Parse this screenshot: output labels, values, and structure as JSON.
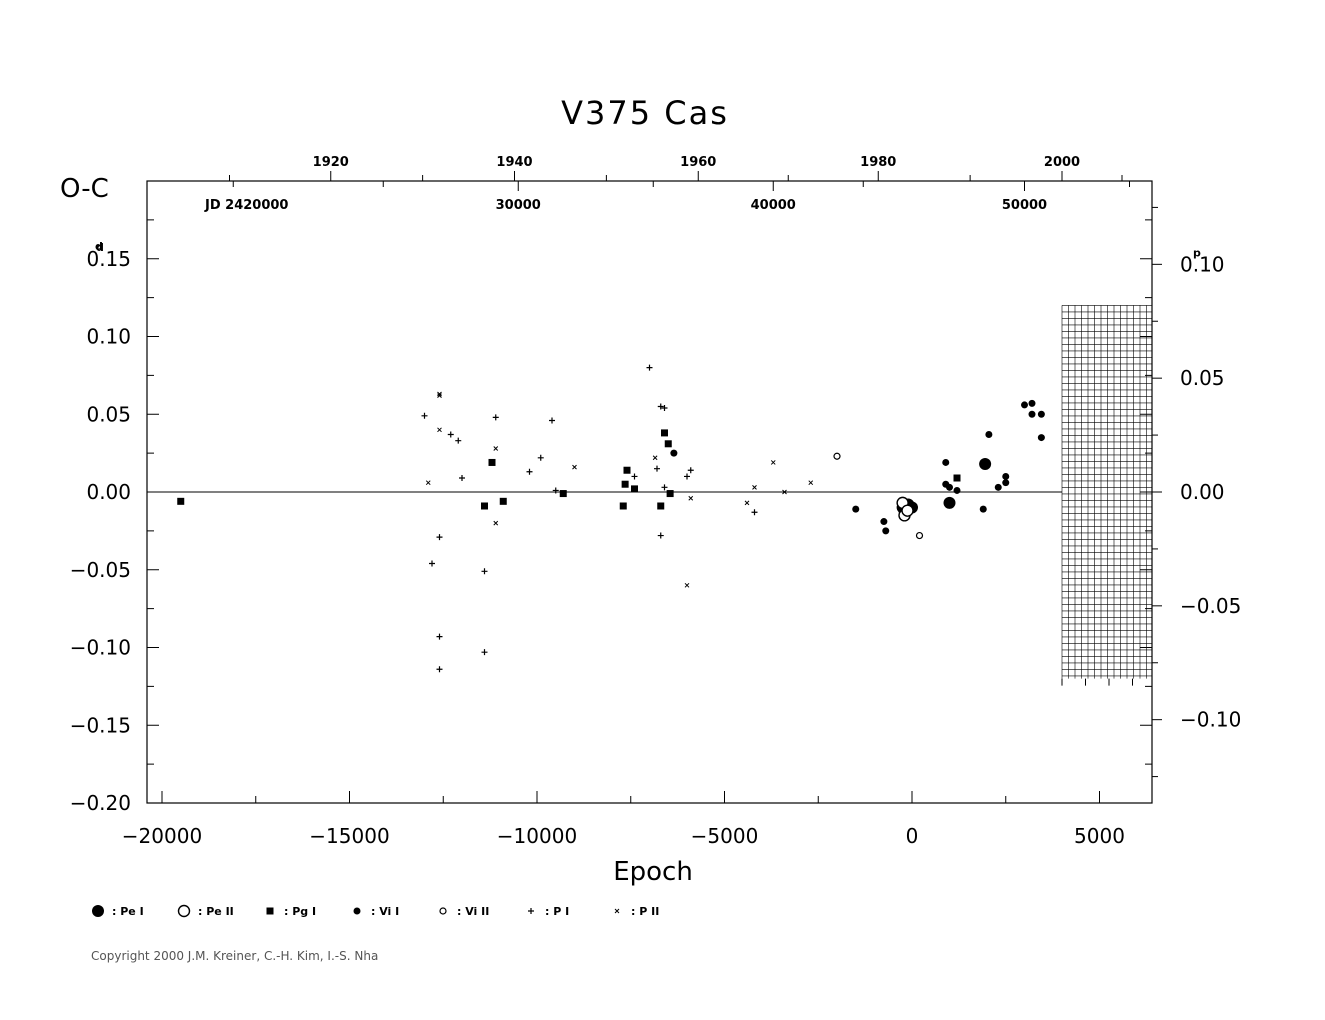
{
  "chart_data": {
    "type": "scatter",
    "title": "V375  Cas",
    "ylabel": "O-C",
    "ylabel_unit": "d",
    "xlabel": "Epoch",
    "xlim": [
      -20400,
      6400
    ],
    "ylim": [
      -0.2,
      0.2
    ],
    "x_ticks": [
      -20000,
      -15000,
      -10000,
      -5000,
      0,
      5000
    ],
    "y_ticks": [
      0.15,
      0.1,
      0.05,
      0.0,
      -0.05,
      -0.1,
      -0.15,
      -0.2
    ],
    "y_tick_labels": [
      "0.15",
      "0.10",
      "0.05",
      "0.00",
      "−0.05",
      "−0.10",
      "−0.15",
      "−0.20"
    ],
    "x_tick_labels": [
      "−20000",
      "−15000",
      "−10000",
      "−5000",
      "0",
      "5000"
    ],
    "right_axis": {
      "unit": "p",
      "ticks": [
        0.1,
        0.05,
        0.0,
        -0.05,
        -0.1
      ],
      "labels": [
        "0.10",
        "0.05",
        "0.00",
        "−0.05",
        "−0.10"
      ],
      "scale_per_day": 0.683
    },
    "top_year_axis": {
      "labels": [
        "1920",
        "1940",
        "1960",
        "1980",
        "2000"
      ],
      "epochs": [
        -15500,
        -10600,
        -5700,
        -900,
        4000
      ]
    },
    "top_jd_axis": {
      "prefix_label": "JD  2420000",
      "labels": [
        "30000",
        "40000",
        "50000"
      ],
      "epochs": [
        -10500,
        -3700,
        3000
      ]
    },
    "hatched_region": {
      "x_from": 4000,
      "y_from": -0.12,
      "y_to": 0.12
    },
    "series": [
      {
        "name": "Pe I",
        "marker": "filled-circle-large",
        "points": [
          [
            -250,
            -0.01
          ],
          [
            -100,
            -0.008
          ],
          [
            0,
            -0.01
          ],
          [
            1000,
            -0.007
          ],
          [
            1950,
            0.018
          ],
          [
            -200,
            -0.012
          ],
          [
            -150,
            -0.009
          ]
        ]
      },
      {
        "name": "Pe II",
        "marker": "open-circle-large",
        "points": [
          [
            -250,
            -0.007
          ],
          [
            -200,
            -0.015
          ],
          [
            -120,
            -0.012
          ]
        ]
      },
      {
        "name": "Pg I",
        "marker": "filled-square",
        "points": [
          [
            -19500,
            -0.006
          ],
          [
            -11200,
            0.019
          ],
          [
            -11400,
            -0.009
          ],
          [
            -10900,
            -0.006
          ],
          [
            -9300,
            -0.001
          ],
          [
            -7700,
            -0.009
          ],
          [
            -7600,
            0.014
          ],
          [
            -7650,
            0.005
          ],
          [
            -7400,
            0.002
          ],
          [
            -6700,
            -0.009
          ],
          [
            -6600,
            0.038
          ],
          [
            -6500,
            0.031
          ],
          [
            -6450,
            -0.001
          ],
          [
            1200,
            0.009
          ]
        ]
      },
      {
        "name": "Vi I",
        "marker": "filled-circle-small",
        "points": [
          [
            -6350,
            0.025
          ],
          [
            -1500,
            -0.011
          ],
          [
            -750,
            -0.019
          ],
          [
            -700,
            -0.025
          ],
          [
            900,
            0.019
          ],
          [
            900,
            0.005
          ],
          [
            1000,
            0.003
          ],
          [
            1200,
            0.001
          ],
          [
            1900,
            -0.011
          ],
          [
            2050,
            0.037
          ],
          [
            2300,
            0.003
          ],
          [
            2500,
            0.01
          ],
          [
            2500,
            0.006
          ],
          [
            3000,
            0.056
          ],
          [
            3200,
            0.057
          ],
          [
            3200,
            0.05
          ],
          [
            3450,
            0.05
          ],
          [
            3450,
            0.035
          ]
        ]
      },
      {
        "name": "Vi II",
        "marker": "open-circle-small",
        "points": [
          [
            -2000,
            0.023
          ],
          [
            200,
            -0.028
          ]
        ]
      },
      {
        "name": "P I",
        "marker": "plus",
        "points": [
          [
            -13000,
            0.049
          ],
          [
            -12800,
            -0.046
          ],
          [
            -12600,
            -0.029
          ],
          [
            -12600,
            -0.093
          ],
          [
            -12600,
            -0.114
          ],
          [
            -12300,
            0.037
          ],
          [
            -12100,
            0.033
          ],
          [
            -12000,
            0.009
          ],
          [
            -11400,
            -0.051
          ],
          [
            -11400,
            -0.103
          ],
          [
            -11100,
            0.048
          ],
          [
            -10200,
            0.013
          ],
          [
            -9900,
            0.022
          ],
          [
            -9600,
            0.046
          ],
          [
            -9500,
            0.001
          ],
          [
            -7000,
            0.08
          ],
          [
            -6800,
            0.015
          ],
          [
            -6700,
            0.055
          ],
          [
            -6600,
            0.054
          ],
          [
            -6700,
            -0.028
          ],
          [
            -6600,
            0.003
          ],
          [
            -6000,
            0.01
          ],
          [
            -5900,
            0.014
          ],
          [
            -4200,
            -0.013
          ],
          [
            -7400,
            0.01
          ]
        ]
      },
      {
        "name": "P II",
        "marker": "cross",
        "points": [
          [
            -12900,
            0.006
          ],
          [
            -12600,
            0.063
          ],
          [
            -12600,
            0.062
          ],
          [
            -12600,
            0.04
          ],
          [
            -11100,
            0.028
          ],
          [
            -11100,
            -0.02
          ],
          [
            -9000,
            0.016
          ],
          [
            -6850,
            0.022
          ],
          [
            -5900,
            -0.004
          ],
          [
            -6000,
            -0.06
          ],
          [
            -4400,
            -0.007
          ],
          [
            -4200,
            0.003
          ],
          [
            -3700,
            0.019
          ],
          [
            -3400,
            0.0
          ],
          [
            -2700,
            0.006
          ]
        ]
      }
    ]
  },
  "legend": [
    {
      "marker": "filled-circle-large",
      "label": ": Pe I"
    },
    {
      "marker": "open-circle-large",
      "label": ": Pe II"
    },
    {
      "marker": "filled-square",
      "label": ": Pg I"
    },
    {
      "marker": "filled-circle-small",
      "label": ": Vi I"
    },
    {
      "marker": "open-circle-small",
      "label": ": Vi II"
    },
    {
      "marker": "plus",
      "label": ": P I"
    },
    {
      "marker": "cross",
      "label": ": P II"
    }
  ],
  "copyright": "Copyright 2000 J.M. Kreiner, C.-H. Kim, I.-S. Nha"
}
